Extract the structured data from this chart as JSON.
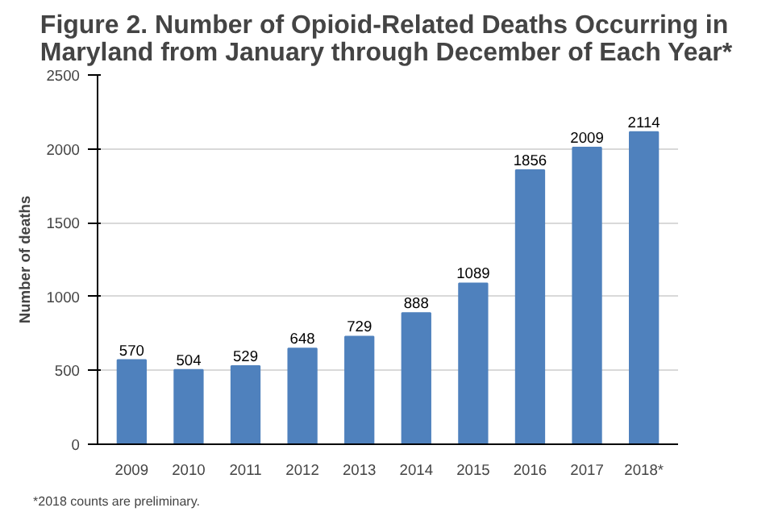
{
  "chart_data": {
    "type": "bar",
    "title": "Figure 2.  Number of Opioid-Related Deaths Occurring in\nMaryland from January through December of Each Year*",
    "categories": [
      "2009",
      "2010",
      "2011",
      "2012",
      "2013",
      "2014",
      "2015",
      "2016",
      "2017",
      "2018*"
    ],
    "values": [
      570,
      504,
      529,
      648,
      729,
      888,
      1089,
      1856,
      2009,
      2114
    ],
    "color": "#4f81bd",
    "ylabel": "Number of deaths",
    "ylim": [
      0,
      2500
    ],
    "yticks": [
      0,
      500,
      1000,
      1500,
      2000,
      2500
    ],
    "grid": "y",
    "data_labels": true,
    "annotations": [
      "*2018 counts are preliminary."
    ]
  }
}
